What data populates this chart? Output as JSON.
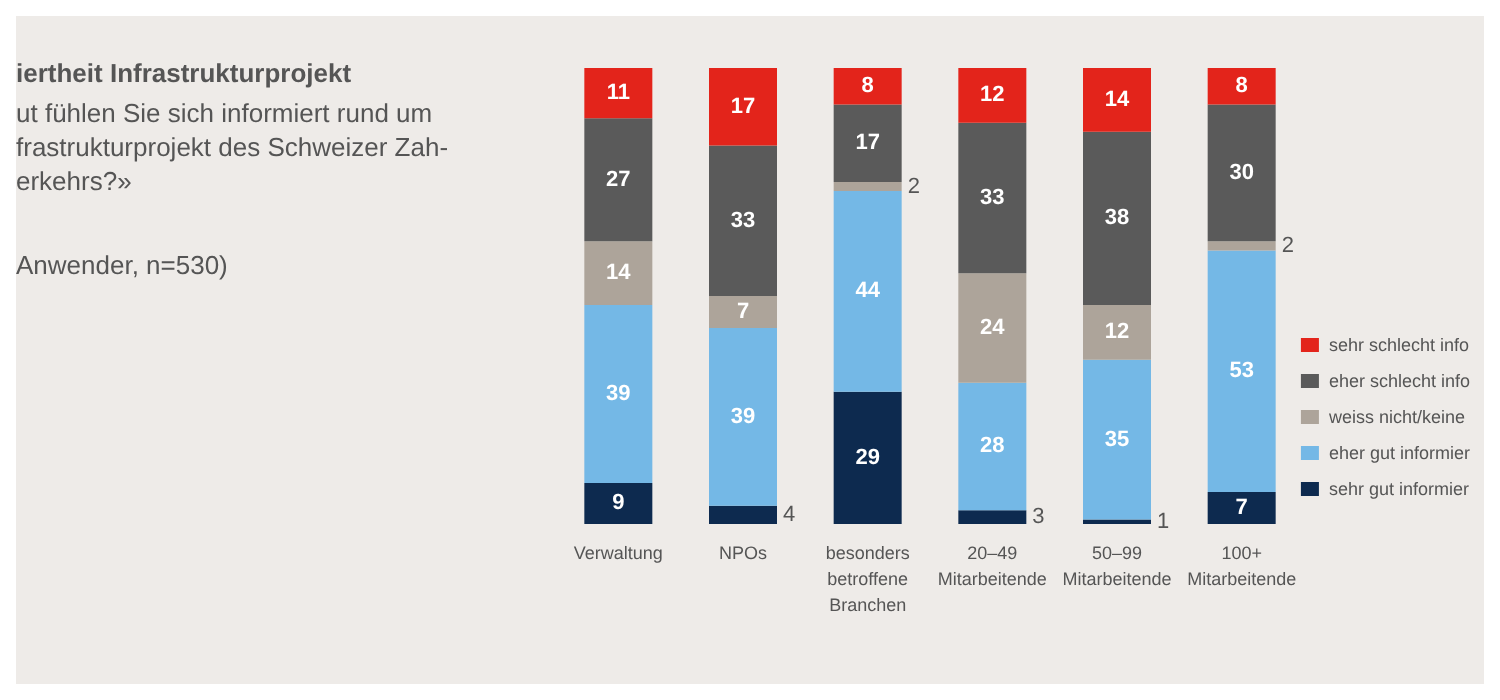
{
  "chart_data": {
    "type": "bar",
    "stacked": true,
    "data_labels": true,
    "legend": "right",
    "title": "iertheit Infrastrukturprojekt",
    "subtitle": "ut fühlen Sie sich informiert rund um\nfrastrukturprojekt des Schweizer Zah-\nerkehrs?»",
    "annotations": [
      "Anwender, n=530)"
    ],
    "categories": [
      "Verwaltung",
      "NPOs",
      "besonders\nbetroffene\nBranchen",
      "20–49\nMitarbeitende",
      "50–99\nMitarbeitende",
      "100+\nMitarbeitende"
    ],
    "series": [
      {
        "name": "sehr gut informier",
        "color": "#0d2a4f",
        "values": [
          9,
          4,
          29,
          3,
          1,
          7
        ]
      },
      {
        "name": "eher gut informier",
        "color": "#74b8e6",
        "values": [
          39,
          39,
          44,
          28,
          35,
          53
        ]
      },
      {
        "name": "weiss nicht/keine",
        "color": "#ada49a",
        "values": [
          14,
          7,
          2,
          24,
          12,
          2
        ]
      },
      {
        "name": "eher schlecht info",
        "color": "#5a5a5a",
        "values": [
          27,
          33,
          17,
          33,
          38,
          30
        ]
      },
      {
        "name": "sehr schlecht info",
        "color": "#e3241b",
        "values": [
          11,
          17,
          8,
          12,
          14,
          8
        ]
      }
    ]
  }
}
